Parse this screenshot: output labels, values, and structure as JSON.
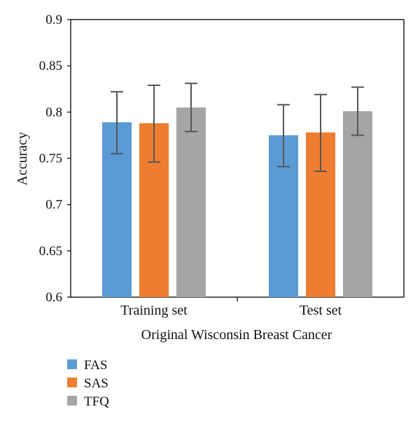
{
  "chart_data": {
    "type": "bar",
    "title": "",
    "xlabel": "Original Wisconsin Breast Cancer",
    "ylabel": "Accuracy",
    "ylim": [
      0.6,
      0.9
    ],
    "yticks": [
      "0.6",
      "0.65",
      "0.7",
      "0.75",
      "0.8",
      "0.85",
      "0.9"
    ],
    "grid": false,
    "legend_position": "bottom-left",
    "categories": [
      "Training set",
      "Test set"
    ],
    "series": [
      {
        "name": "FAS",
        "color": "#5B9BD5",
        "values": [
          0.789,
          0.775
        ],
        "error_low": [
          0.755,
          0.741
        ],
        "error_high": [
          0.822,
          0.808
        ]
      },
      {
        "name": "SAS",
        "color": "#ED7D31",
        "values": [
          0.788,
          0.778
        ],
        "error_low": [
          0.746,
          0.736
        ],
        "error_high": [
          0.829,
          0.819
        ]
      },
      {
        "name": "TFQ",
        "color": "#A5A5A5",
        "values": [
          0.805,
          0.801
        ],
        "error_low": [
          0.779,
          0.775
        ],
        "error_high": [
          0.831,
          0.827
        ]
      }
    ]
  }
}
